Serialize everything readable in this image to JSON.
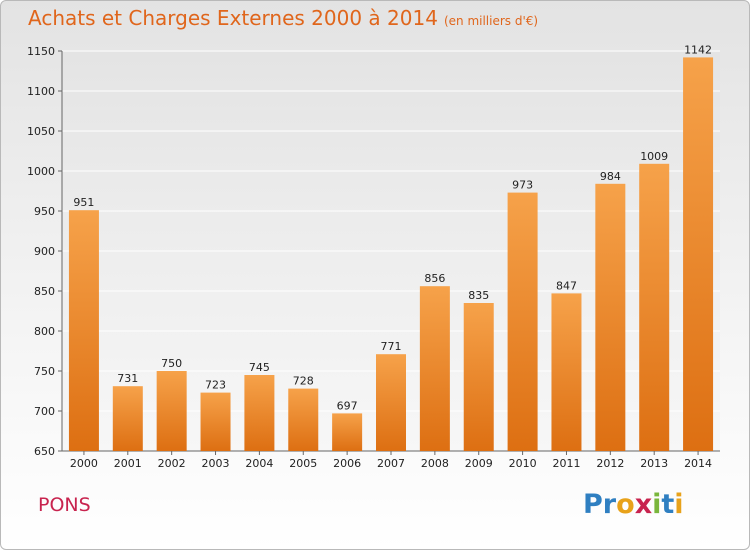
{
  "chart_data": {
    "type": "bar",
    "title": "Achats et Charges Externes 2000 à 2014",
    "subtitle": "(en milliers d'€)",
    "categories": [
      "2000",
      "2001",
      "2002",
      "2003",
      "2004",
      "2005",
      "2006",
      "2007",
      "2008",
      "2009",
      "2010",
      "2011",
      "2012",
      "2013",
      "2014"
    ],
    "values": [
      951,
      731,
      750,
      723,
      745,
      728,
      697,
      771,
      856,
      835,
      973,
      847,
      984,
      1009,
      1142
    ],
    "ylim": [
      650,
      1150
    ],
    "yticks": [
      650,
      700,
      750,
      800,
      850,
      900,
      950,
      1000,
      1050,
      1100,
      1150
    ],
    "grid": true,
    "bar_color": "#f28c2e"
  },
  "footer": {
    "commune": "PONS",
    "brand": [
      "P",
      "r",
      "o",
      "x",
      "i",
      "t",
      "i"
    ],
    "brand_colors": [
      "#2f7fc1",
      "#2f7fc1",
      "#e8a21a",
      "#c8234e",
      "#7ab63c",
      "#2f7fc1",
      "#e8a21a"
    ]
  }
}
